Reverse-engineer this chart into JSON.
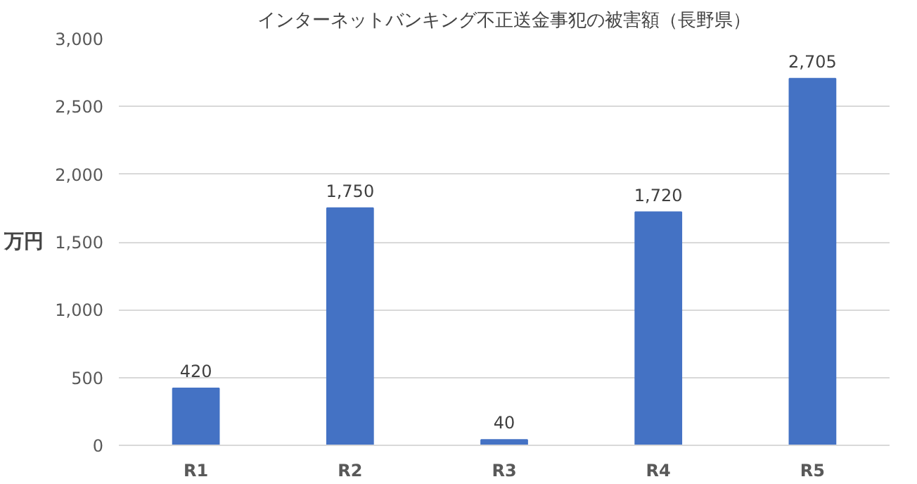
{
  "chart_data": {
    "type": "bar",
    "title": "インターネットバンキング不正送金事犯の被害額（長野県）",
    "ylabel": "万円",
    "categories": [
      "R1",
      "R2",
      "R3",
      "R4",
      "R5"
    ],
    "values": [
      420,
      1750,
      40,
      1720,
      2705
    ],
    "color": "#4472c4",
    "ylim": [
      0,
      3000
    ],
    "yticks": [
      0,
      500,
      {
        "value": 1000,
        "label": "1,000"
      },
      {
        "value": 1500,
        "label": "1,500"
      },
      {
        "value": 2000,
        "label": "2,000"
      },
      {
        "value": 2500,
        "label": "2,500"
      },
      {
        "value": 3000,
        "label": "3,000"
      }
    ],
    "value_labels": [
      "420",
      "1,750",
      "40",
      "1,720",
      "2,705"
    ],
    "grid": "y"
  }
}
